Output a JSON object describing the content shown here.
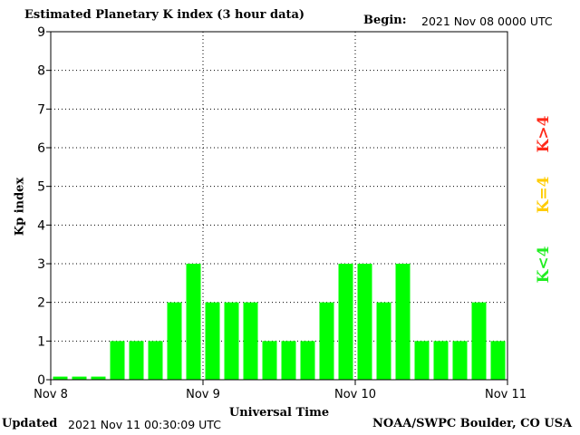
{
  "header": {
    "title": "Estimated Planetary K index (3 hour data)",
    "begin_label": "Begin:",
    "begin_date": "2021 Nov 08 0000 UTC"
  },
  "footer": {
    "updated_label": "Updated",
    "updated_date": "2021 Nov 11 00:30:09 UTC",
    "credit": "NOAA/SWPC Boulder, CO USA"
  },
  "legend": {
    "high": {
      "label": "K>4",
      "color": "#ff2a1a"
    },
    "equal": {
      "label": "K=4",
      "color": "#ffcc00"
    },
    "low": {
      "label": "K<4",
      "color": "#22ee22"
    }
  },
  "colors": {
    "bar": "#00ff00"
  },
  "chart_data": {
    "type": "bar",
    "title": "Estimated Planetary K index (3 hour data)",
    "xlabel": "Universal Time",
    "ylabel": "Kp index",
    "ylim": [
      0,
      9
    ],
    "yticks": [
      "0",
      "1",
      "2",
      "3",
      "4",
      "5",
      "6",
      "7",
      "8",
      "9"
    ],
    "xticks": [
      "Nov 8",
      "Nov 9",
      "Nov 10",
      "Nov 11"
    ],
    "grid": true,
    "bars_per_day": 8,
    "values": [
      0,
      0,
      0,
      1,
      1,
      1,
      2,
      3,
      2,
      2,
      2,
      1,
      1,
      1,
      2,
      3,
      3,
      2,
      3,
      1,
      1,
      1,
      2,
      1
    ]
  }
}
